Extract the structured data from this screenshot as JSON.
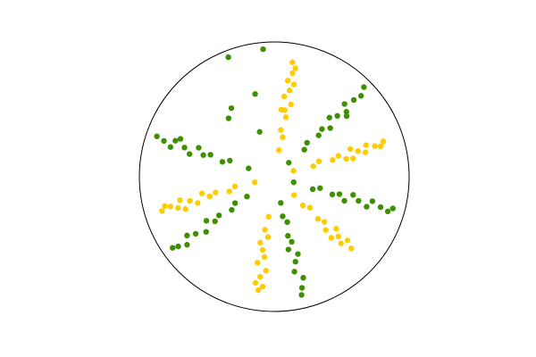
{
  "chart_data": {
    "type": "polar-scatter",
    "rlim": [
      0,
      1
    ],
    "theta_unit": "degrees",
    "series": [
      {
        "color": "#ffcc00",
        "theta": [
          80,
          78,
          82,
          79,
          81,
          77,
          83,
          80,
          78,
          82,
          80,
          79,
          81,
          84,
          17,
          15,
          19,
          16,
          18,
          14,
          20,
          17,
          15,
          19,
          17,
          16,
          18,
          13,
          196,
          194,
          198,
          195,
          197,
          193,
          199,
          196,
          194,
          198,
          196,
          195,
          197,
          200,
          262,
          260,
          264,
          261,
          263,
          259,
          265,
          262,
          260,
          264,
          262,
          258,
          317,
          315,
          319,
          316,
          318,
          314,
          320,
          317,
          315,
          319,
          317,
          313
        ],
        "r": [
          0.2,
          0.3,
          0.35,
          0.45,
          0.5,
          0.55,
          0.6,
          0.65,
          0.7,
          0.72,
          0.78,
          0.82,
          0.86,
          0.5,
          0.15,
          0.3,
          0.35,
          0.45,
          0.5,
          0.55,
          0.6,
          0.65,
          0.7,
          0.72,
          0.78,
          0.82,
          0.85,
          0.6,
          0.15,
          0.3,
          0.35,
          0.45,
          0.5,
          0.55,
          0.6,
          0.65,
          0.72,
          0.75,
          0.8,
          0.84,
          0.87,
          0.7,
          0.3,
          0.4,
          0.45,
          0.55,
          0.6,
          0.65,
          0.7,
          0.75,
          0.8,
          0.82,
          0.85,
          0.5,
          0.2,
          0.3,
          0.35,
          0.45,
          0.5,
          0.55,
          0.6,
          0.65,
          0.7,
          0.72,
          0.78,
          0.62
        ]
      },
      {
        "color": "#3d9100",
        "theta": [
          44,
          42,
          46,
          43,
          45,
          41,
          47,
          44,
          42,
          46,
          44,
          43,
          45,
          40,
          162,
          160,
          164,
          161,
          163,
          159,
          165,
          162,
          160,
          164,
          162,
          161,
          158,
          344,
          342,
          346,
          343,
          345,
          341,
          347,
          344,
          342,
          346,
          344,
          343,
          345,
          216,
          214,
          218,
          215,
          217,
          213,
          219,
          216,
          214,
          218,
          216,
          215,
          284,
          282,
          286,
          283,
          285,
          281,
          287,
          284,
          282,
          286,
          284,
          283,
          111,
          95,
          103,
          122,
          128,
          108
        ],
        "r": [
          0.15,
          0.3,
          0.35,
          0.45,
          0.5,
          0.55,
          0.6,
          0.65,
          0.72,
          0.75,
          0.82,
          0.88,
          0.94,
          0.7,
          0.2,
          0.35,
          0.4,
          0.5,
          0.55,
          0.6,
          0.65,
          0.7,
          0.78,
          0.8,
          0.86,
          0.92,
          0.75,
          0.15,
          0.3,
          0.35,
          0.45,
          0.5,
          0.55,
          0.6,
          0.65,
          0.72,
          0.75,
          0.82,
          0.88,
          0.91,
          0.25,
          0.35,
          0.4,
          0.5,
          0.55,
          0.6,
          0.65,
          0.72,
          0.78,
          0.82,
          0.88,
          0.92,
          0.2,
          0.3,
          0.35,
          0.45,
          0.5,
          0.55,
          0.6,
          0.65,
          0.72,
          0.78,
          0.85,
          0.9,
          0.95,
          0.95,
          0.63,
          0.6,
          0.55,
          0.35
        ]
      }
    ]
  }
}
